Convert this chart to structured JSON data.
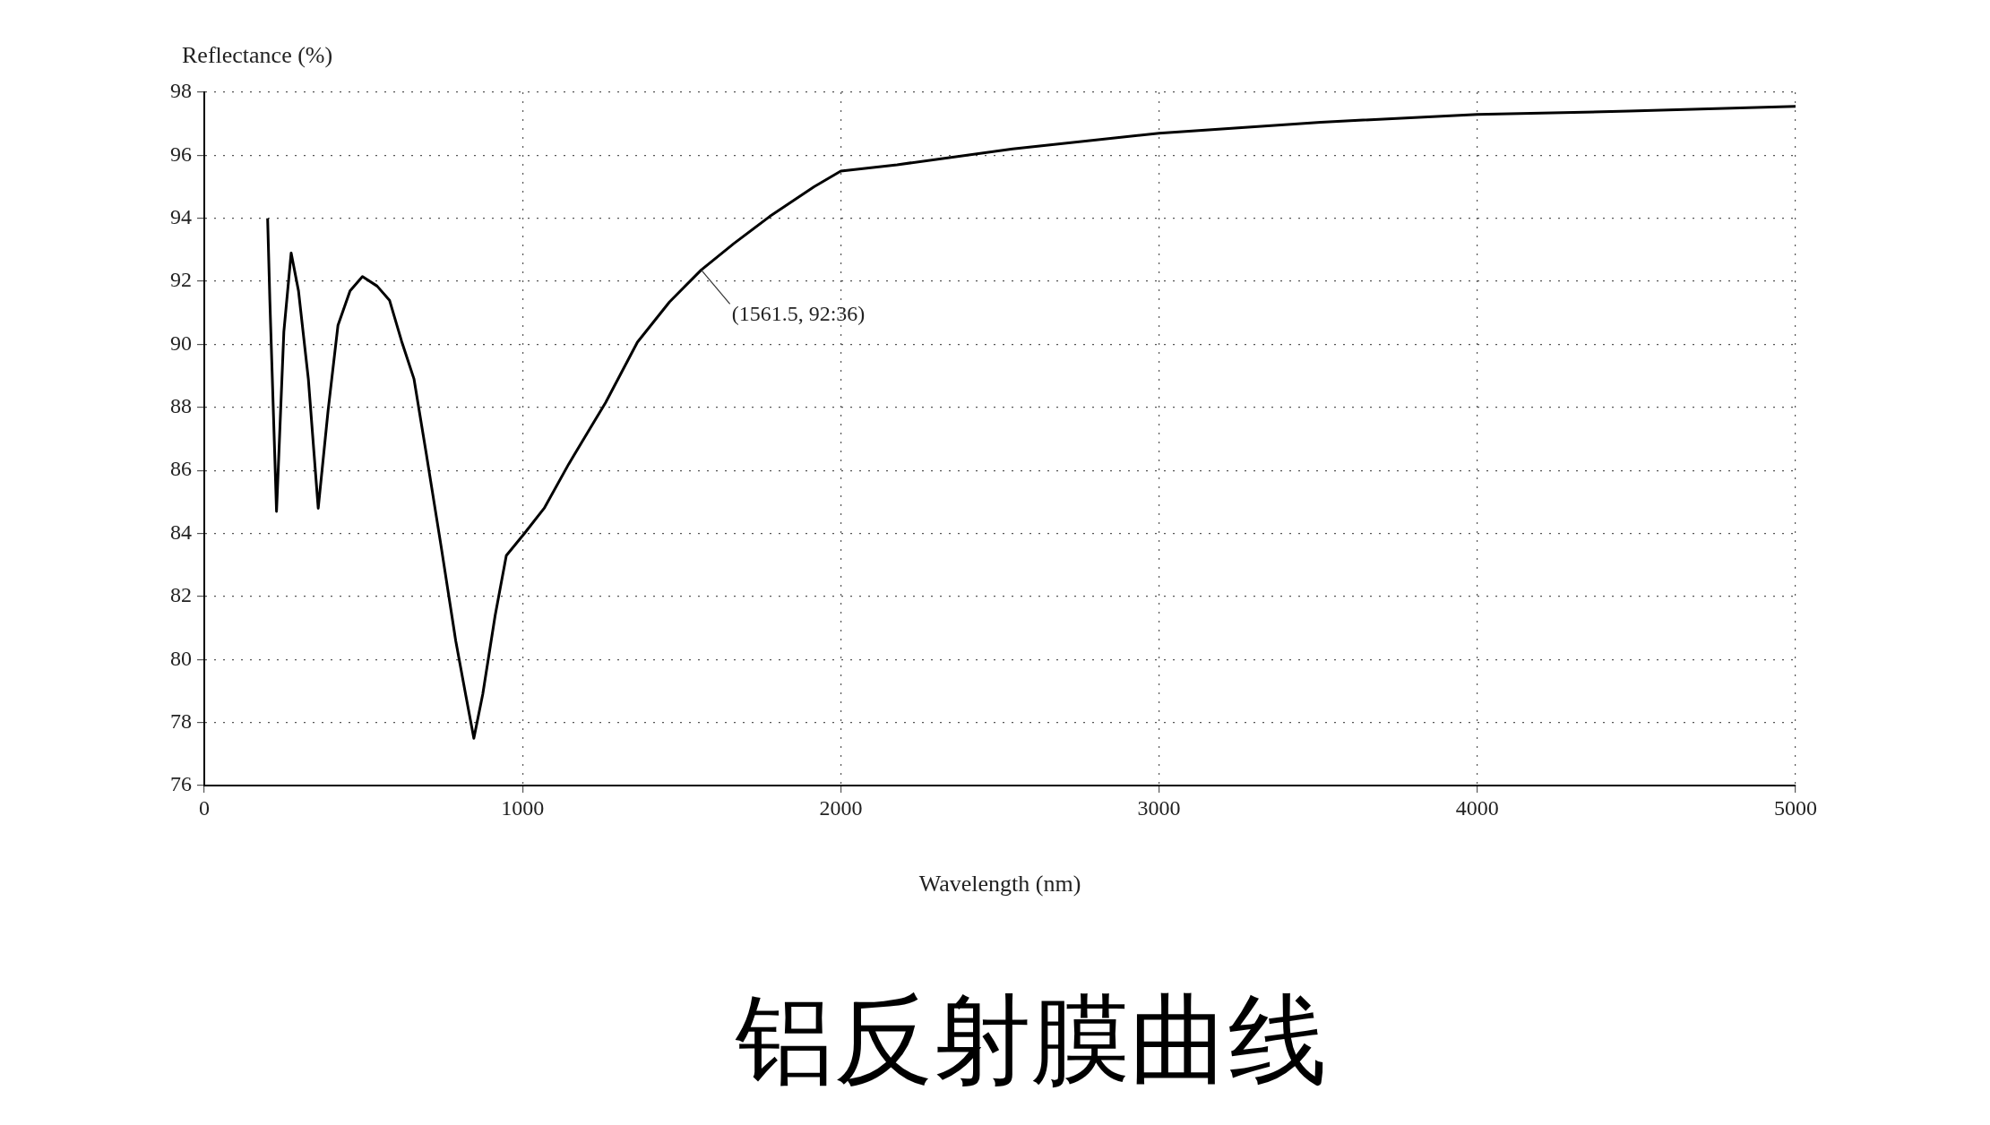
{
  "chart_data": {
    "type": "line",
    "title": "铝反射膜曲线",
    "xlabel": "Wavelength (nm)",
    "ylabel": "Reflectance (%)",
    "xlim": [
      0,
      5000
    ],
    "xticks": [
      0,
      1000,
      2000,
      3000,
      4000,
      5000
    ],
    "ylim": [
      76,
      98
    ],
    "yticks": [
      76,
      78,
      80,
      82,
      84,
      86,
      88,
      90,
      92,
      94,
      96,
      98
    ],
    "grid": true,
    "legend": false,
    "marker": "none",
    "line_style": "solid",
    "annotations": [
      {
        "text": "(1561.5, 92:36)",
        "x": 1561.5,
        "y": 92.36
      }
    ],
    "series": [
      {
        "color": "#000000",
        "x": [
          199,
          206,
          227,
          250,
          273,
          296,
          327,
          358,
          389,
          420,
          458,
          497,
          543,
          582,
          620,
          659,
          698,
          744,
          790,
          821,
          847,
          875,
          914,
          949,
          1006,
          1068,
          1145,
          1222,
          1261,
          1361,
          1462,
          1561.5,
          1664,
          1777,
          1916,
          2000,
          2177,
          2540,
          3000,
          3508,
          4000,
          4477,
          5000
        ],
        "values": [
          94.0,
          91.4,
          84.7,
          90.4,
          92.9,
          91.7,
          88.9,
          84.8,
          87.9,
          90.6,
          91.7,
          92.15,
          91.85,
          91.4,
          90.1,
          88.9,
          86.5,
          83.6,
          80.6,
          78.9,
          77.5,
          78.9,
          81.4,
          83.3,
          84.0,
          84.8,
          86.2,
          87.5,
          88.15,
          90.07,
          91.35,
          92.36,
          93.2,
          94.06,
          95.0,
          95.5,
          95.7,
          96.2,
          96.7,
          97.05,
          97.3,
          97.4,
          97.55
        ]
      }
    ]
  }
}
